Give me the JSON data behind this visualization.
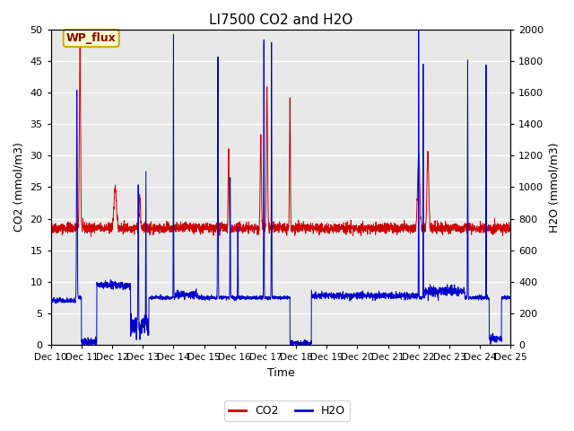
{
  "title": "LI7500 CO2 and H2O",
  "xlabel": "Time",
  "ylabel_left": "CO2 (mmol/m3)",
  "ylabel_right": "H2O (mmol/m3)",
  "xlim": [
    0,
    15
  ],
  "ylim_left": [
    0,
    50
  ],
  "ylim_right": [
    0,
    2000
  ],
  "yticks_left": [
    0,
    5,
    10,
    15,
    20,
    25,
    30,
    35,
    40,
    45,
    50
  ],
  "yticks_right": [
    0,
    200,
    400,
    600,
    800,
    1000,
    1200,
    1400,
    1600,
    1800,
    2000
  ],
  "xtick_positions": [
    0,
    1,
    2,
    3,
    4,
    5,
    6,
    7,
    8,
    9,
    10,
    11,
    12,
    13,
    14,
    15
  ],
  "xtick_labels": [
    "Dec 10",
    "Dec 11",
    "Dec 12",
    "Dec 13",
    "Dec 14",
    "Dec 15",
    "Dec 16",
    "Dec 17",
    "Dec 18",
    "Dec 19",
    "Dec 20",
    "Dec 21",
    "Dec 22",
    "Dec 23",
    "Dec 24",
    "Dec 25"
  ],
  "annotation_text": "WP_flux",
  "co2_color": "#cc0000",
  "h2o_color": "#0000cc",
  "background_color": "#e8e8e8",
  "grid_color": "#ffffff",
  "legend_co2": "CO2",
  "legend_h2o": "H2O",
  "title_fontsize": 11,
  "axis_fontsize": 9,
  "tick_fontsize": 8,
  "xtick_fontsize": 7.5
}
